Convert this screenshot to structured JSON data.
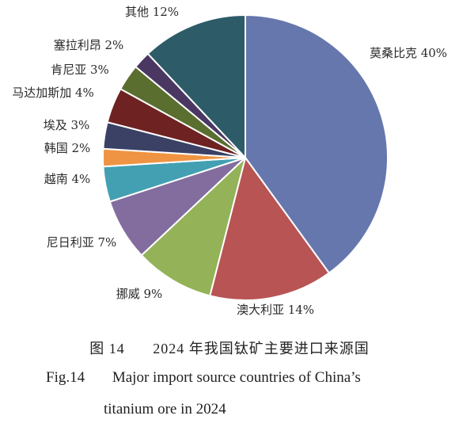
{
  "chart_data": {
    "type": "pie",
    "title": "",
    "slices": [
      {
        "label": "莫桑比克",
        "value": 40,
        "text": "40%",
        "color": "#6677ad"
      },
      {
        "label": "澳大利亚",
        "value": 14,
        "text": "14%",
        "color": "#b85454"
      },
      {
        "label": "挪威",
        "value": 9,
        "text": "9%",
        "color": "#94b258"
      },
      {
        "label": "尼日利亚",
        "value": 7,
        "text": "7%",
        "color": "#836d9e"
      },
      {
        "label": "越南",
        "value": 4,
        "text": "4%",
        "color": "#43a0b2"
      },
      {
        "label": "韩国",
        "value": 2,
        "text": "2%",
        "color": "#ef9442"
      },
      {
        "label": "埃及",
        "value": 3,
        "text": "3%",
        "color": "#3a4165"
      },
      {
        "label": "马达加斯加",
        "value": 4,
        "text": "4%",
        "color": "#6e2222"
      },
      {
        "label": "肯尼亚",
        "value": 3,
        "text": "3%",
        "color": "#5a6e30"
      },
      {
        "label": "塞拉利昂",
        "value": 2,
        "text": "2%",
        "color": "#4a3863"
      },
      {
        "label": "其他",
        "value": 12,
        "text": "12%",
        "color": "#2d5c68"
      }
    ]
  },
  "caption": {
    "cn_number": "图 14",
    "cn_title": "2024 年我国钛矿主要进口来源国",
    "en_number": "Fig.14",
    "en_line1": "Major import source countries of China’s",
    "en_line2": "titanium ore in 2024"
  }
}
